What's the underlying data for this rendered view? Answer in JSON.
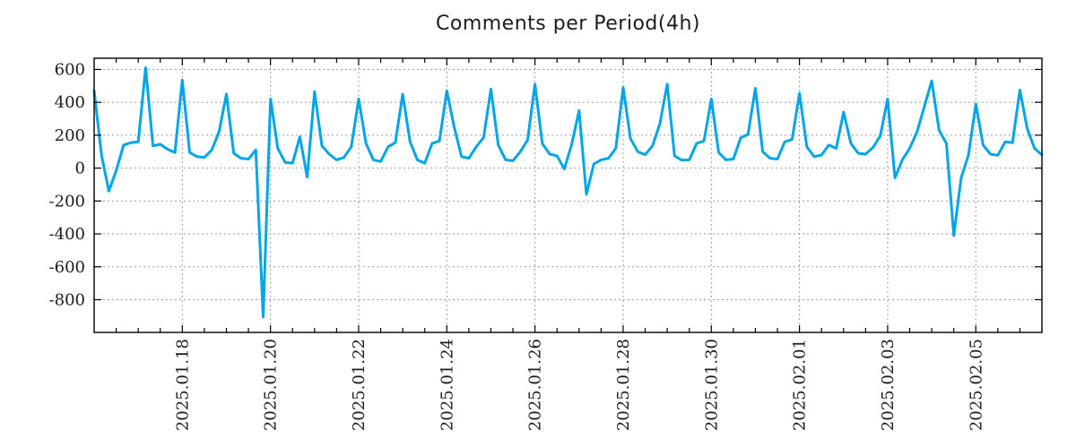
{
  "chart_data": {
    "type": "line",
    "title": "Comments per Period(4h)",
    "xlabel": "",
    "ylabel": "",
    "grid": true,
    "legend": "none",
    "ylim": [
      -999,
      668
    ],
    "y_ticks": [
      600,
      400,
      200,
      0,
      -200,
      -400,
      -600,
      -800
    ],
    "x_ticks": [
      {
        "index": 12,
        "label": "2025.01.18"
      },
      {
        "index": 24,
        "label": "2025.01.20"
      },
      {
        "index": 36,
        "label": "2025.01.22"
      },
      {
        "index": 48,
        "label": "2025.01.24"
      },
      {
        "index": 60,
        "label": "2025.01.26"
      },
      {
        "index": 72,
        "label": "2025.01.28"
      },
      {
        "index": 84,
        "label": "2025.01.30"
      },
      {
        "index": 96,
        "label": "2025.02.01"
      },
      {
        "index": 108,
        "label": "2025.02.03"
      },
      {
        "index": 120,
        "label": "2025.02.05"
      }
    ],
    "minor_tick_every": 3,
    "major_tick_every": 12,
    "colors": {
      "line": "#00A6E8",
      "grid": "#9e9e9e",
      "border": "#000000",
      "text": "#1c1c1c"
    },
    "series": [
      {
        "name": "comments",
        "values": [
          470,
          80,
          -140,
          -15,
          140,
          155,
          160,
          610,
          135,
          145,
          115,
          95,
          535,
          95,
          70,
          65,
          110,
          220,
          450,
          90,
          60,
          55,
          110,
          -905,
          420,
          120,
          35,
          30,
          190,
          -55,
          465,
          135,
          85,
          50,
          65,
          130,
          420,
          150,
          50,
          40,
          130,
          155,
          450,
          160,
          50,
          30,
          150,
          165,
          470,
          250,
          70,
          60,
          130,
          185,
          480,
          140,
          50,
          45,
          100,
          170,
          510,
          150,
          85,
          75,
          -5,
          145,
          350,
          -160,
          25,
          50,
          60,
          120,
          490,
          180,
          100,
          82,
          135,
          270,
          510,
          75,
          48,
          50,
          150,
          165,
          420,
          95,
          50,
          55,
          185,
          205,
          485,
          100,
          60,
          55,
          160,
          175,
          455,
          130,
          70,
          80,
          140,
          120,
          340,
          150,
          90,
          85,
          125,
          195,
          420,
          -60,
          50,
          120,
          220,
          375,
          530,
          230,
          150,
          -410,
          -60,
          80,
          390,
          140,
          85,
          78,
          160,
          155,
          475,
          240,
          120,
          80
        ]
      }
    ]
  }
}
